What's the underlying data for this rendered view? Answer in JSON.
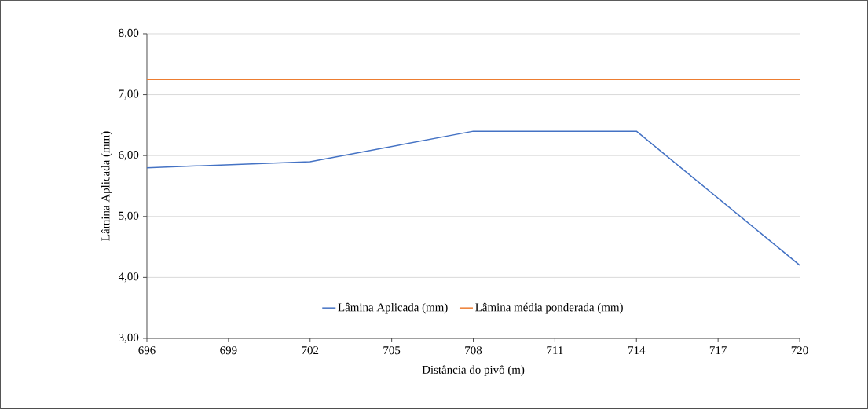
{
  "chart_data": {
    "type": "line",
    "xlabel": "Distância do pivô (m)",
    "ylabel": "Lâmina Aplicada (mm)",
    "series": [
      {
        "name": "Lâmina Aplicada (mm)",
        "color": "#4472c4",
        "x": [
          696,
          702,
          708,
          714,
          720
        ],
        "values": [
          5.8,
          5.9,
          6.4,
          6.4,
          4.2
        ]
      },
      {
        "name": "Lâmina média ponderada (mm)",
        "color": "#ed7d31",
        "x": [
          696,
          720
        ],
        "values": [
          7.25,
          7.25
        ]
      }
    ],
    "xlim": [
      696,
      720
    ],
    "xticks": [
      696,
      699,
      702,
      705,
      708,
      711,
      714,
      717,
      720
    ],
    "ylim": [
      3,
      8
    ],
    "yticks": [
      {
        "value": 3,
        "label": "3,00"
      },
      {
        "value": 4,
        "label": "4,00"
      },
      {
        "value": 5,
        "label": "5,00"
      },
      {
        "value": 6,
        "label": "6,00"
      },
      {
        "value": 7,
        "label": "7,00"
      },
      {
        "value": 8,
        "label": "8,00"
      }
    ],
    "grid": "y",
    "legend": "bottom",
    "marker": "none",
    "line_style": "solid"
  }
}
